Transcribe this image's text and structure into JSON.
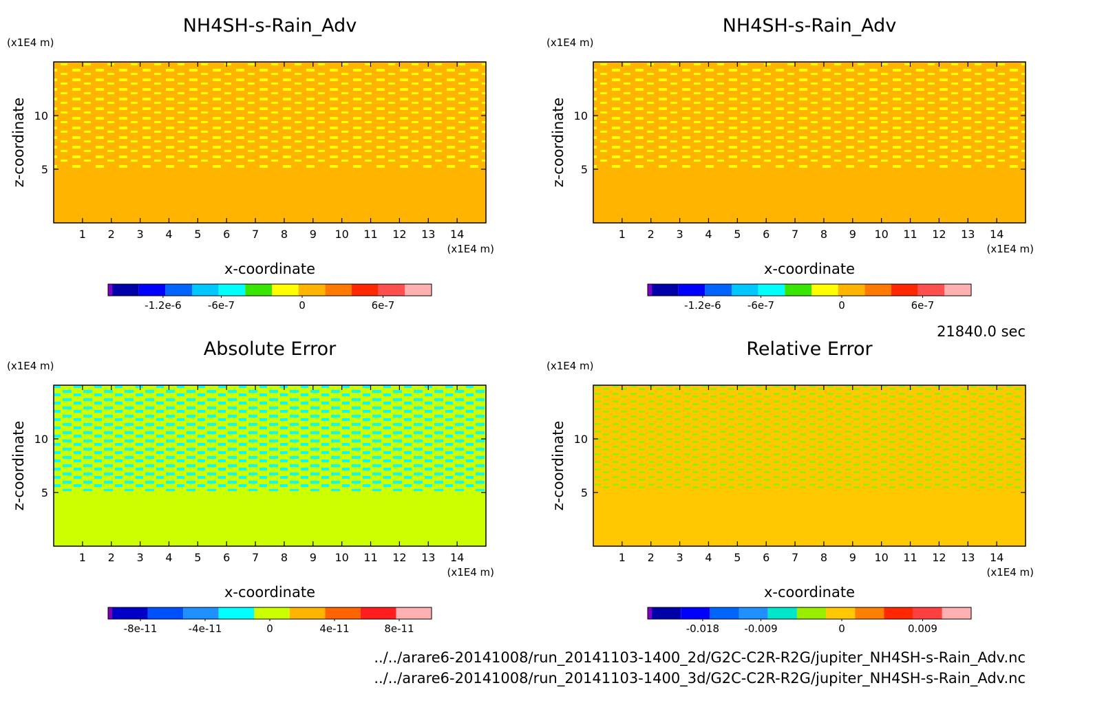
{
  "time_label": "21840.0 sec",
  "file_paths": [
    "../../arare6-20141008/run_20141103-1400_2d/G2C-C2R-R2G/jupiter_NH4SH-s-Rain_Adv.nc",
    "../../arare6-20141008/run_20141103-1400_3d/G2C-C2R-R2G/jupiter_NH4SH-s-Rain_Adv.nc"
  ],
  "chart_data": [
    {
      "type": "heatmap",
      "title": "NH4SH-s-Rain_Adv",
      "xlabel": "x-coordinate",
      "ylabel": "z-coordinate",
      "x_unit": "(x1E4 m)",
      "y_unit": "(x1E4 m)",
      "xlim": [
        0,
        15
      ],
      "ylim": [
        0,
        15
      ],
      "x_ticks": [
        1,
        2,
        3,
        4,
        5,
        6,
        7,
        8,
        9,
        10,
        11,
        12,
        13,
        14
      ],
      "y_ticks": [
        5,
        10
      ],
      "colorbar": {
        "colors": [
          "#7f00c8",
          "#0000a8",
          "#0000ff",
          "#0064ff",
          "#00c8ff",
          "#00ffff",
          "#39e600",
          "#ffff00",
          "#ffb400",
          "#ff7a00",
          "#ff2800",
          "#ff4f4f",
          "#ffb0b0"
        ],
        "tick_labels": [
          "-1.2e-6",
          "-6e-7",
          "0",
          "6e-7"
        ]
      }
    },
    {
      "type": "heatmap",
      "title": "NH4SH-s-Rain_Adv",
      "xlabel": "x-coordinate",
      "ylabel": "z-coordinate",
      "x_unit": "(x1E4 m)",
      "y_unit": "(x1E4 m)",
      "xlim": [
        0,
        15
      ],
      "ylim": [
        0,
        15
      ],
      "x_ticks": [
        1,
        2,
        3,
        4,
        5,
        6,
        7,
        8,
        9,
        10,
        11,
        12,
        13,
        14
      ],
      "y_ticks": [
        5,
        10
      ],
      "colorbar": {
        "colors": [
          "#7f00c8",
          "#0000a8",
          "#0000ff",
          "#0064ff",
          "#00c8ff",
          "#00ffff",
          "#39e600",
          "#ffff00",
          "#ffb400",
          "#ff7a00",
          "#ff2800",
          "#ff4f4f",
          "#ffb0b0"
        ],
        "tick_labels": [
          "-1.2e-6",
          "-6e-7",
          "0",
          "6e-7"
        ]
      }
    },
    {
      "type": "heatmap",
      "title": "Absolute Error",
      "xlabel": "x-coordinate",
      "ylabel": "z-coordinate",
      "x_unit": "(x1E4 m)",
      "y_unit": "(x1E4 m)",
      "xlim": [
        0,
        15
      ],
      "ylim": [
        0,
        15
      ],
      "x_ticks": [
        1,
        2,
        3,
        4,
        5,
        6,
        7,
        8,
        9,
        10,
        11,
        12,
        13,
        14
      ],
      "y_ticks": [
        5,
        10
      ],
      "colorbar": {
        "colors": [
          "#8000b0",
          "#0000c8",
          "#0050ff",
          "#1e90ff",
          "#00ffff",
          "#ccff00",
          "#ffb400",
          "#ff6400",
          "#ff1e1e",
          "#ffb0b0"
        ],
        "tick_labels": [
          "-8e-11",
          "-4e-11",
          "0",
          "4e-11",
          "8e-11"
        ]
      }
    },
    {
      "type": "heatmap",
      "title": "Relative Error",
      "xlabel": "x-coordinate",
      "ylabel": "z-coordinate",
      "x_unit": "(x1E4 m)",
      "y_unit": "(x1E4 m)",
      "xlim": [
        0,
        15
      ],
      "ylim": [
        0,
        15
      ],
      "x_ticks": [
        1,
        2,
        3,
        4,
        5,
        6,
        7,
        8,
        9,
        10,
        11,
        12,
        13,
        14
      ],
      "y_ticks": [
        5,
        10
      ],
      "colorbar": {
        "colors": [
          "#7f00c8",
          "#0000a8",
          "#0000ff",
          "#0064ff",
          "#1e90ff",
          "#00e6c8",
          "#99ee00",
          "#ffc800",
          "#ff8000",
          "#ff2800",
          "#ff4040",
          "#ffb0b0"
        ],
        "tick_labels": [
          "-0.018",
          "-0.009",
          "0",
          "0.009"
        ]
      }
    }
  ]
}
